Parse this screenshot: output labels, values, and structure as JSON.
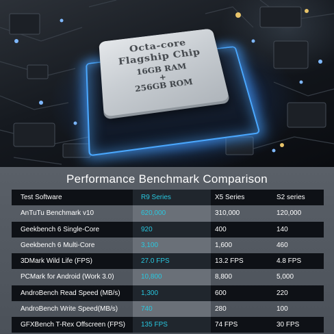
{
  "chip": {
    "line1": "Octa-core",
    "line2": "Flagship Chip",
    "line3": "16GB RAM",
    "line4": "+",
    "line5": "256GB ROM"
  },
  "benchmark": {
    "title": "Performance Benchmark Comparison",
    "header": [
      "Test Software",
      "R9 Series",
      "X5 Series",
      "S2 series"
    ],
    "rows": [
      [
        "AnTuTu Benchmark v10",
        "620,000",
        "310,000",
        "120,000"
      ],
      [
        "Geekbench 6 Single-Core",
        "920",
        "400",
        "140"
      ],
      [
        "Geekbench 6 Multi-Core",
        "3,100",
        "1,600",
        "460"
      ],
      [
        "3DMark Wild Life (FPS)",
        "27.0 FPS",
        "13.2 FPS",
        "4.8 FPS"
      ],
      [
        "PCMark for Android (Work 3.0)",
        "10,800",
        "8,800",
        "5,000"
      ],
      [
        "AndroBench Read Speed (MB/s)",
        "1,300",
        "600",
        "220"
      ],
      [
        "AndroBench Write Speed(MB/s)",
        "740",
        "280",
        "100"
      ],
      [
        "GFXBench T-Rex Offscreen (FPS)",
        "135 FPS",
        "74 FPS",
        "30 FPS"
      ]
    ],
    "colors": {
      "highlight_text": "#28c8e0",
      "dark_row": "#0e1116",
      "panel": "#565c64"
    }
  }
}
